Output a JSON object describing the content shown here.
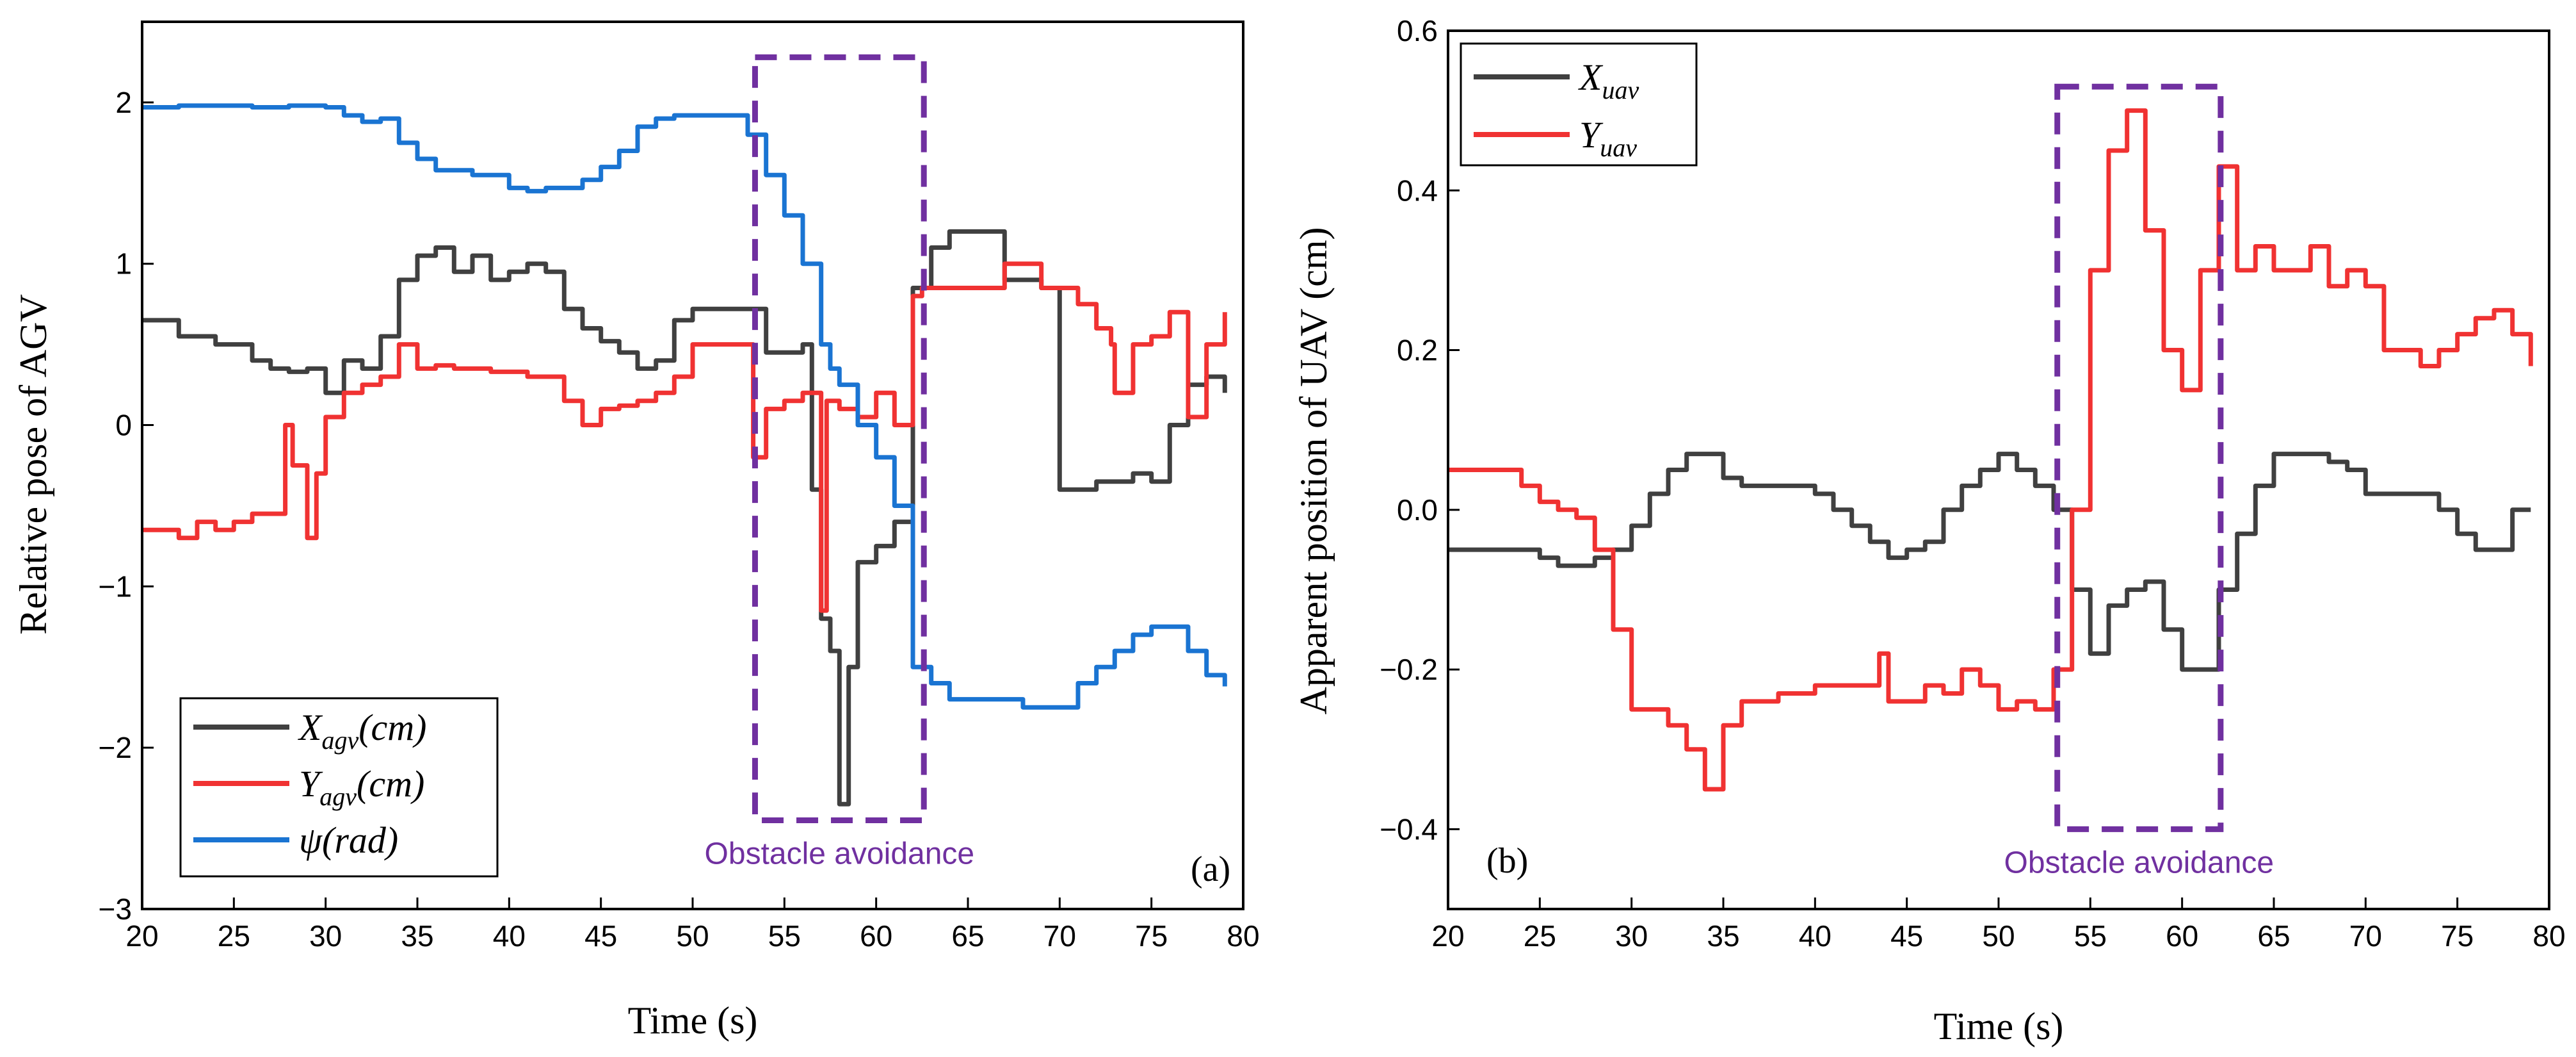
{
  "chart_data": [
    {
      "type": "line",
      "panel_label": "(a)",
      "xlabel": "Time (s)",
      "ylabel": "Relative pose of AGV",
      "xlim": [
        20,
        80
      ],
      "ylim": [
        -3,
        2.5
      ],
      "xticks": [
        20,
        25,
        30,
        35,
        40,
        45,
        50,
        55,
        60,
        65,
        70,
        75,
        80
      ],
      "yticks": [
        -3,
        -2,
        -1,
        0,
        1,
        2
      ],
      "ytick_labels": [
        "−3",
        "−2",
        "−1",
        "0",
        "1",
        "2"
      ],
      "legend_position": "bottom-left",
      "annotation": {
        "text": "Obstacle avoidance",
        "box_x": [
          53.4,
          62.6
        ],
        "box_y": [
          -2.45,
          2.28
        ]
      },
      "series": [
        {
          "name": "X_agv(cm)",
          "legend_main": "X",
          "legend_sub": "agv",
          "legend_suffix": "(cm)",
          "color": "#404040",
          "x": [
            20,
            22,
            24,
            26,
            27,
            28,
            29,
            30,
            31,
            32,
            33,
            34,
            35,
            36,
            37,
            38,
            39,
            40,
            41,
            42,
            43,
            44,
            45,
            46,
            47,
            48,
            49,
            50,
            51,
            52,
            53,
            54,
            55,
            56,
            56.5,
            57,
            57.5,
            58,
            58.5,
            59,
            60,
            61,
            62,
            63,
            64,
            65,
            66,
            67,
            68,
            69,
            70,
            71,
            72,
            73,
            74,
            75,
            76,
            77,
            78,
            79
          ],
          "values": [
            0.65,
            0.55,
            0.5,
            0.4,
            0.35,
            0.33,
            0.35,
            0.2,
            0.4,
            0.35,
            0.55,
            0.9,
            1.05,
            1.1,
            0.95,
            1.05,
            0.9,
            0.95,
            1.0,
            0.95,
            0.72,
            0.6,
            0.52,
            0.45,
            0.35,
            0.4,
            0.65,
            0.72,
            0.72,
            0.72,
            0.72,
            0.45,
            0.45,
            0.5,
            -0.4,
            -1.2,
            -1.4,
            -2.35,
            -1.5,
            -0.85,
            -0.75,
            -0.6,
            0.85,
            1.1,
            1.2,
            1.2,
            1.2,
            0.9,
            0.9,
            0.85,
            -0.4,
            -0.4,
            -0.35,
            -0.35,
            -0.3,
            -0.35,
            0.0,
            0.25,
            0.3,
            0.2
          ]
        },
        {
          "name": "Y_agv(cm)",
          "legend_main": "Y",
          "legend_sub": "agv",
          "legend_suffix": "(cm)",
          "color": "#f03232",
          "x": [
            20,
            21,
            22,
            23,
            24,
            25,
            26,
            27,
            27.8,
            28.2,
            29,
            29.5,
            30,
            31,
            32,
            33,
            34,
            35,
            36,
            37,
            38,
            39,
            40,
            41,
            42,
            43,
            44,
            45,
            46,
            47,
            48,
            49,
            50,
            51,
            52,
            53,
            53.3,
            54,
            55,
            56,
            57,
            57.3,
            58,
            59,
            60,
            61,
            62,
            62.5,
            63,
            64,
            65,
            66,
            67,
            68,
            69,
            70,
            71,
            72,
            72.8,
            73,
            74,
            75,
            76,
            76.5,
            77,
            78,
            79
          ],
          "values": [
            -0.65,
            -0.65,
            -0.7,
            -0.6,
            -0.65,
            -0.6,
            -0.55,
            -0.55,
            0.0,
            -0.25,
            -0.7,
            -0.3,
            0.05,
            0.2,
            0.25,
            0.3,
            0.5,
            0.35,
            0.37,
            0.35,
            0.35,
            0.33,
            0.33,
            0.3,
            0.3,
            0.15,
            0.0,
            0.1,
            0.12,
            0.15,
            0.2,
            0.3,
            0.5,
            0.5,
            0.5,
            0.5,
            -0.2,
            0.1,
            0.15,
            0.2,
            -1.15,
            0.15,
            0.1,
            0.05,
            0.2,
            0.0,
            0.8,
            0.85,
            0.85,
            0.85,
            0.85,
            0.85,
            1.0,
            1.0,
            0.85,
            0.85,
            0.75,
            0.6,
            0.5,
            0.2,
            0.5,
            0.55,
            0.7,
            0.7,
            0.05,
            0.5,
            0.7
          ]
        },
        {
          "name": "psi(rad)",
          "legend_main": "ψ",
          "legend_sub": "",
          "legend_suffix": "(rad)",
          "color": "#1a74d2",
          "x": [
            20,
            22,
            24,
            26,
            28,
            30,
            31,
            32,
            33,
            34,
            35,
            36,
            38,
            40,
            41,
            42,
            44,
            45,
            46,
            47,
            48,
            49,
            50,
            51,
            52,
            53,
            54,
            55,
            56,
            57,
            57.5,
            58,
            59,
            60,
            61,
            62,
            63,
            64,
            66,
            68,
            70,
            71,
            72,
            73,
            74,
            75,
            76,
            77,
            78,
            79
          ],
          "values": [
            1.97,
            1.98,
            1.98,
            1.97,
            1.98,
            1.97,
            1.92,
            1.88,
            1.9,
            1.75,
            1.65,
            1.58,
            1.55,
            1.47,
            1.45,
            1.47,
            1.52,
            1.6,
            1.7,
            1.85,
            1.9,
            1.92,
            1.92,
            1.92,
            1.92,
            1.8,
            1.55,
            1.3,
            1.0,
            0.5,
            0.35,
            0.25,
            0.0,
            -0.2,
            -0.5,
            -1.5,
            -1.6,
            -1.7,
            -1.7,
            -1.75,
            -1.75,
            -1.6,
            -1.5,
            -1.4,
            -1.3,
            -1.25,
            -1.25,
            -1.4,
            -1.55,
            -1.62
          ]
        }
      ]
    },
    {
      "type": "line",
      "panel_label": "(b)",
      "xlabel": "Time (s)",
      "ylabel": "Apparent position of UAV (cm)",
      "xlim": [
        20,
        80
      ],
      "ylim": [
        -0.5,
        0.6
      ],
      "xticks": [
        20,
        25,
        30,
        35,
        40,
        45,
        50,
        55,
        60,
        65,
        70,
        75,
        80
      ],
      "yticks": [
        -0.5,
        -0.4,
        -0.2,
        0.0,
        0.2,
        0.4,
        0.6
      ],
      "ytick_labels": [
        "",
        "−0.4",
        "−0.2",
        "0.0",
        "0.2",
        "0.4",
        "0.6"
      ],
      "legend_position": "top-left",
      "annotation": {
        "text": "Obstacle avoidance",
        "box_x": [
          53.2,
          62.1
        ],
        "box_y": [
          -0.4,
          0.53
        ]
      },
      "series": [
        {
          "name": "X_uav",
          "legend_main": "X",
          "legend_sub": "uav",
          "legend_suffix": "",
          "color": "#404040",
          "x": [
            20,
            22,
            24,
            25,
            26,
            27,
            28,
            29,
            30,
            31,
            32,
            33,
            34,
            35,
            36,
            38,
            40,
            41,
            42,
            43,
            44,
            45,
            46,
            47,
            48,
            49,
            50,
            51,
            52,
            53,
            54,
            55,
            56,
            57,
            58,
            59,
            60,
            61,
            62,
            63,
            64,
            65,
            66,
            67,
            68,
            69,
            70,
            71,
            72,
            73,
            74,
            75,
            76,
            77,
            78,
            79
          ],
          "values": [
            -0.05,
            -0.05,
            -0.05,
            -0.06,
            -0.07,
            -0.07,
            -0.06,
            -0.05,
            -0.02,
            0.02,
            0.05,
            0.07,
            0.07,
            0.04,
            0.03,
            0.03,
            0.02,
            0.0,
            -0.02,
            -0.04,
            -0.06,
            -0.05,
            -0.04,
            0.0,
            0.03,
            0.05,
            0.07,
            0.05,
            0.03,
            0.0,
            -0.1,
            -0.18,
            -0.12,
            -0.1,
            -0.09,
            -0.15,
            -0.2,
            -0.2,
            -0.1,
            -0.03,
            0.03,
            0.07,
            0.07,
            0.07,
            0.06,
            0.05,
            0.02,
            0.02,
            0.02,
            0.02,
            0.0,
            -0.03,
            -0.05,
            -0.05,
            0.0,
            0.0
          ]
        },
        {
          "name": "Y_uav",
          "legend_main": "Y",
          "legend_sub": "uav",
          "legend_suffix": "",
          "color": "#f03232",
          "x": [
            20,
            22,
            24,
            25,
            26,
            27,
            28,
            29,
            30,
            31,
            32,
            33,
            34,
            35,
            36,
            38,
            40,
            42,
            43,
            43.5,
            44,
            45,
            46,
            47,
            48,
            49,
            50,
            51,
            52,
            53,
            54,
            55,
            56,
            57,
            58,
            59,
            60,
            61,
            62,
            63,
            64,
            65,
            66,
            67,
            68,
            69,
            70,
            71,
            72,
            73,
            74,
            75,
            76,
            77,
            78,
            79
          ],
          "values": [
            0.05,
            0.05,
            0.03,
            0.01,
            0.0,
            -0.01,
            -0.05,
            -0.15,
            -0.25,
            -0.25,
            -0.27,
            -0.3,
            -0.35,
            -0.27,
            -0.24,
            -0.23,
            -0.22,
            -0.22,
            -0.22,
            -0.18,
            -0.24,
            -0.24,
            -0.22,
            -0.23,
            -0.2,
            -0.22,
            -0.25,
            -0.24,
            -0.25,
            -0.2,
            0.0,
            0.3,
            0.45,
            0.5,
            0.35,
            0.2,
            0.15,
            0.3,
            0.43,
            0.3,
            0.33,
            0.3,
            0.3,
            0.33,
            0.28,
            0.3,
            0.28,
            0.2,
            0.2,
            0.18,
            0.2,
            0.22,
            0.24,
            0.25,
            0.22,
            0.18
          ]
        }
      ]
    }
  ]
}
